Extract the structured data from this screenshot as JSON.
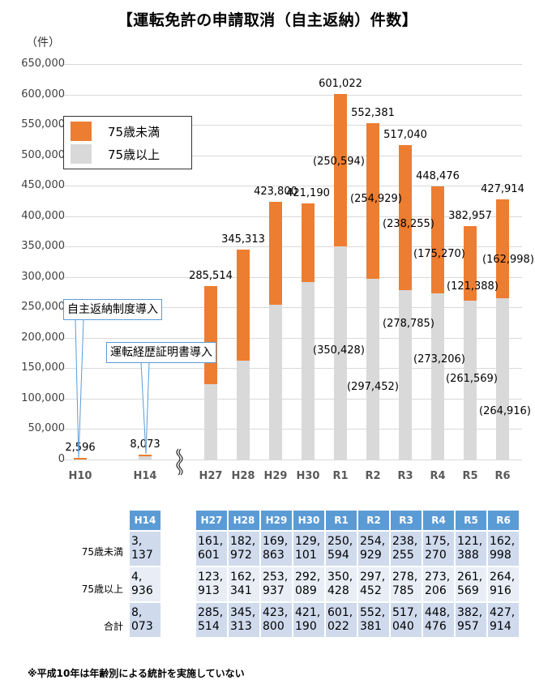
{
  "title": "【運転免許の申請取消（自主返納）件数】",
  "unit_label": "（件）",
  "colors": {
    "under75": "#ed7d31",
    "over75": "#d9d9d9",
    "grid": "#d9d9d9",
    "table_header": "#5b9bd5",
    "callout_border": "#5b9bd5"
  },
  "legend": {
    "items": [
      {
        "label": "75歳未満",
        "color": "#ed7d31"
      },
      {
        "label": "75歳以上",
        "color": "#d9d9d9"
      }
    ]
  },
  "callouts": [
    {
      "text": "自主返納制度導入",
      "target": "H10"
    },
    {
      "text": "運転経歴証明書導入",
      "target": "H14"
    }
  ],
  "chart_data": {
    "type": "bar",
    "stacked": true,
    "title": "【運転免許の申請取消（自主返納）件数】",
    "xlabel": "",
    "ylabel": "（件）",
    "ylim": [
      0,
      650000
    ],
    "yticks": [
      0,
      50000,
      100000,
      150000,
      200000,
      250000,
      300000,
      350000,
      400000,
      450000,
      500000,
      550000,
      600000,
      650000
    ],
    "ytick_labels": [
      "0",
      "50,000",
      "100,000",
      "150,000",
      "200,000",
      "250,000",
      "300,000",
      "350,000",
      "400,000",
      "450,000",
      "500,000",
      "550,000",
      "600,000",
      "650,000"
    ],
    "grid": true,
    "legend_position": "upper-left",
    "axis_break_after": "H14",
    "categories": [
      "H10",
      "H14",
      "H27",
      "H28",
      "H29",
      "H30",
      "R1",
      "R2",
      "R3",
      "R4",
      "R5",
      "R6"
    ],
    "series": [
      {
        "name": "75歳以上",
        "color": "#d9d9d9",
        "values": [
          null,
          4936,
          123913,
          162341,
          253937,
          292089,
          350428,
          297452,
          278785,
          273206,
          261569,
          264916
        ]
      },
      {
        "name": "75歳未満",
        "color": "#ed7d31",
        "values": [
          2596,
          3137,
          161601,
          182972,
          169863,
          129101,
          250594,
          254929,
          238255,
          175270,
          121388,
          162998
        ]
      }
    ],
    "totals": [
      2596,
      8073,
      285514,
      345313,
      423800,
      421190,
      601022,
      552381,
      517040,
      448476,
      382957,
      427914
    ],
    "total_labels": [
      "2,596",
      "8,073",
      "285,514",
      "345,313",
      "423,800",
      "421,190",
      "601,022",
      "552,381",
      "517,040",
      "448,476",
      "382,957",
      "427,914"
    ],
    "segment_labels": {
      "R1": {
        "under75": "(250,594)",
        "over75": "(350,428)"
      },
      "R2": {
        "under75": "(254,929)",
        "over75": "(297,452)"
      },
      "R3": {
        "under75": "(238,255)",
        "over75": "(278,785)"
      },
      "R4": {
        "under75": "(175,270)",
        "over75": "(273,206)"
      },
      "R5": {
        "under75": "(121,388)",
        "over75": "(261,569)"
      },
      "R6": {
        "under75": "(162,998)",
        "over75": "(264,916)"
      }
    },
    "annotations": [
      "自主返納制度導入 (H10)",
      "運転経歴証明書導入 (H14)"
    ]
  },
  "table": {
    "row_labels": [
      "75歳未満",
      "75歳以上",
      "合計"
    ],
    "left_block": {
      "headers": [
        "H14"
      ],
      "rows": [
        [
          [
            "3,",
            "137"
          ]
        ],
        [
          [
            "4,",
            "936"
          ]
        ],
        [
          [
            "8,",
            "073"
          ]
        ]
      ]
    },
    "right_block": {
      "headers": [
        "H27",
        "H28",
        "H29",
        "H30",
        "R1",
        "R2",
        "R3",
        "R4",
        "R5",
        "R6"
      ],
      "rows": [
        [
          [
            "161,",
            "601"
          ],
          [
            "182,",
            "972"
          ],
          [
            "169,",
            "863"
          ],
          [
            "129,",
            "101"
          ],
          [
            "250,",
            "594"
          ],
          [
            "254,",
            "929"
          ],
          [
            "238,",
            "255"
          ],
          [
            "175,",
            "270"
          ],
          [
            "121,",
            "388"
          ],
          [
            "162,",
            "998"
          ]
        ],
        [
          [
            "123,",
            "913"
          ],
          [
            "162,",
            "341"
          ],
          [
            "253,",
            "937"
          ],
          [
            "292,",
            "089"
          ],
          [
            "350,",
            "428"
          ],
          [
            "297,",
            "452"
          ],
          [
            "278,",
            "785"
          ],
          [
            "273,",
            "206"
          ],
          [
            "261,",
            "569"
          ],
          [
            "264,",
            "916"
          ]
        ],
        [
          [
            "285,",
            "514"
          ],
          [
            "345,",
            "313"
          ],
          [
            "423,",
            "800"
          ],
          [
            "421,",
            "190"
          ],
          [
            "601,",
            "022"
          ],
          [
            "552,",
            "381"
          ],
          [
            "517,",
            "040"
          ],
          [
            "448,",
            "476"
          ],
          [
            "382,",
            "957"
          ],
          [
            "427,",
            "914"
          ]
        ]
      ]
    }
  },
  "footnote": "※平成10年は年齢別による統計を実施していない"
}
